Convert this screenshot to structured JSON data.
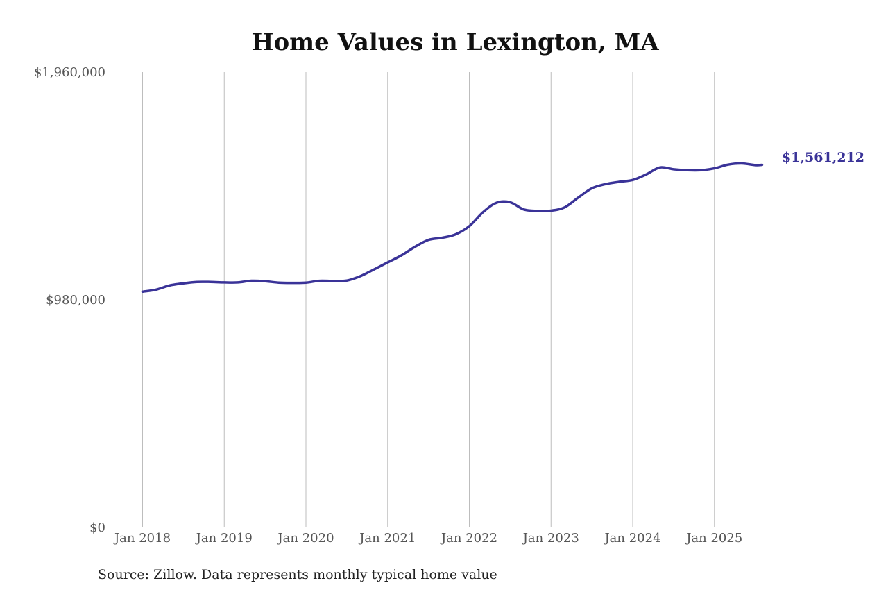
{
  "chart_data": {
    "type": "line",
    "title": "Home Values in Lexington, MA",
    "xlabel": "",
    "ylabel": "",
    "ylim": [
      0,
      1960000
    ],
    "y_ticks": [
      {
        "value": 0,
        "label": "$0"
      },
      {
        "value": 980000,
        "label": "$980,000"
      },
      {
        "value": 1960000,
        "label": "$1,960,000"
      }
    ],
    "x_ticks": [
      {
        "value": "2018-01",
        "label": "Jan 2018"
      },
      {
        "value": "2019-01",
        "label": "Jan 2019"
      },
      {
        "value": "2020-01",
        "label": "Jan 2020"
      },
      {
        "value": "2021-01",
        "label": "Jan 2021"
      },
      {
        "value": "2022-01",
        "label": "Jan 2022"
      },
      {
        "value": "2023-01",
        "label": "Jan 2023"
      },
      {
        "value": "2024-01",
        "label": "Jan 2024"
      },
      {
        "value": "2025-01",
        "label": "Jan 2025"
      }
    ],
    "grid": "vertical",
    "line_color": "#3a3398",
    "series": [
      {
        "x": [
          "2018-01",
          "2018-03",
          "2018-05",
          "2018-07",
          "2018-09",
          "2018-11",
          "2019-01",
          "2019-03",
          "2019-05",
          "2019-07",
          "2019-09",
          "2019-11",
          "2020-01",
          "2020-03",
          "2020-05",
          "2020-07",
          "2020-09",
          "2020-11",
          "2021-01",
          "2021-03",
          "2021-05",
          "2021-07",
          "2021-09",
          "2021-11",
          "2022-01",
          "2022-03",
          "2022-05",
          "2022-07",
          "2022-09",
          "2022-11",
          "2023-01",
          "2023-03",
          "2023-05",
          "2023-07",
          "2023-09",
          "2023-11",
          "2024-01",
          "2024-03",
          "2024-05",
          "2024-07",
          "2024-09",
          "2024-11",
          "2025-01",
          "2025-03",
          "2025-05",
          "2025-07",
          "2025-08"
        ],
        "values": [
          1015000,
          1024000,
          1042000,
          1051000,
          1057000,
          1057000,
          1055000,
          1055000,
          1062000,
          1060000,
          1054000,
          1053000,
          1054000,
          1062000,
          1061000,
          1063000,
          1082000,
          1111000,
          1141000,
          1171000,
          1208000,
          1238000,
          1247000,
          1262000,
          1297000,
          1357000,
          1398000,
          1400000,
          1369000,
          1363000,
          1364000,
          1378000,
          1420000,
          1460000,
          1478000,
          1488000,
          1496000,
          1520000,
          1550000,
          1542000,
          1538000,
          1538000,
          1546000,
          1562000,
          1567000,
          1560000,
          1561212
        ]
      }
    ],
    "end_label": "$1,561,212",
    "source": "Source: Zillow. Data represents monthly typical home value"
  }
}
